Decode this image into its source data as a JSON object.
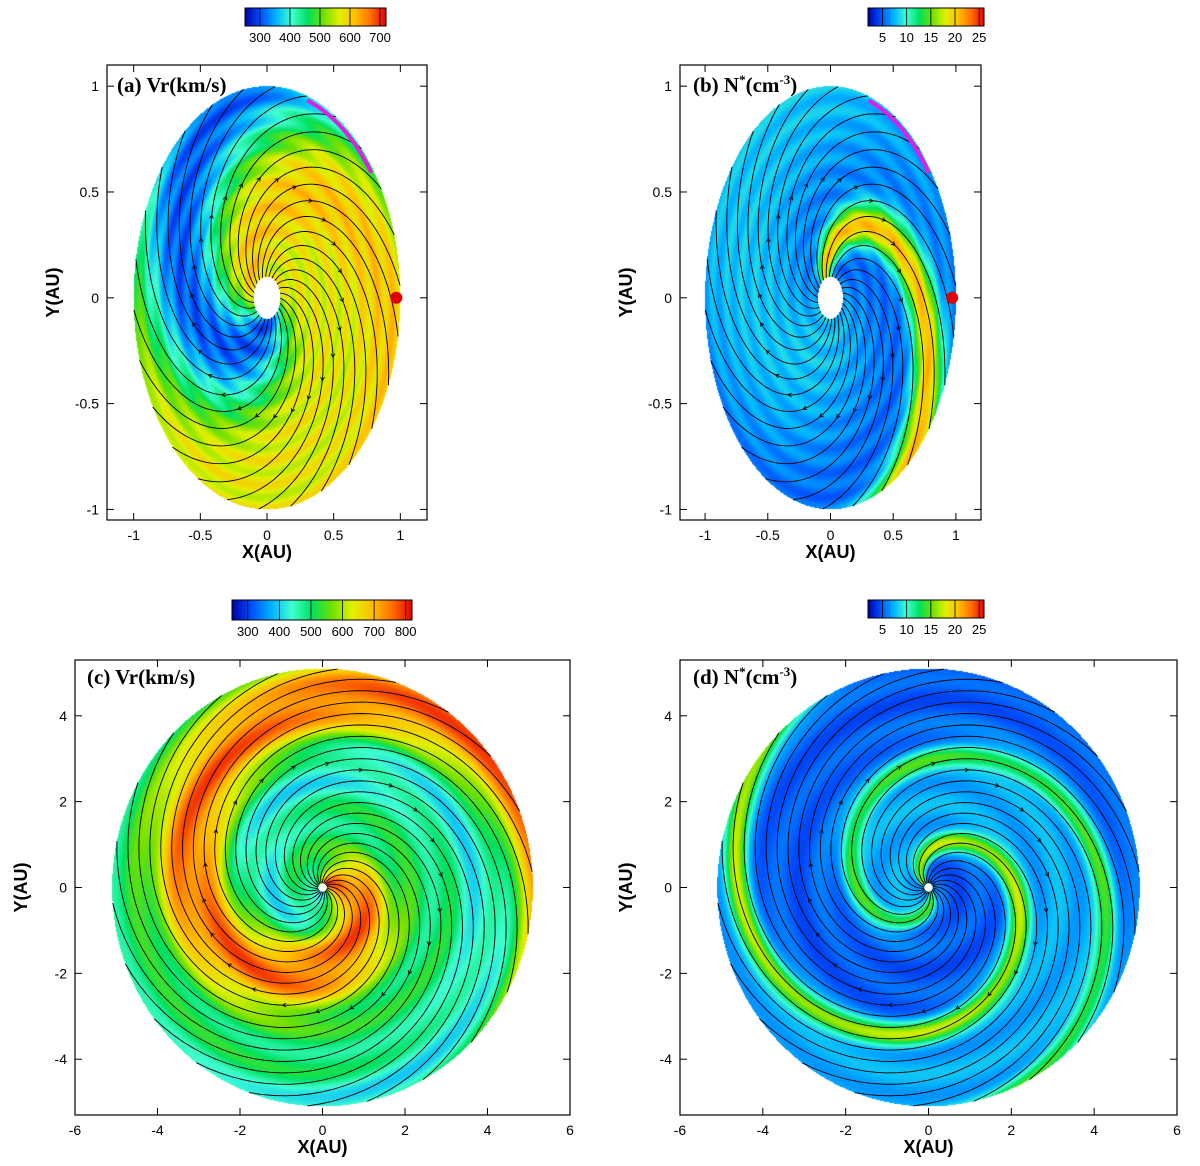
{
  "chart_data": [
    {
      "id": "a",
      "type": "heatmap",
      "title": "(a) Vr(km/s)",
      "quantity": "Vr",
      "xlabel": "X(AU)",
      "ylabel": "Y(AU)",
      "xlim": [
        -1.2,
        1.2
      ],
      "ylim": [
        -1.05,
        1.1
      ],
      "xticks": [
        -1,
        -0.5,
        0,
        0.5,
        1
      ],
      "yticks": [
        -1,
        -0.5,
        0,
        0.5,
        1
      ],
      "xtick_labels": [
        "-1",
        "-0.5",
        "0",
        "0.5",
        "1"
      ],
      "ytick_labels": [
        "-1",
        "-0.5",
        "0",
        "0.5",
        "1"
      ],
      "domain_radius": 1.0,
      "inner_radius": 0.1,
      "colorbar": {
        "min": 250,
        "max": 720,
        "ticks": [
          300,
          400,
          500,
          600,
          700
        ],
        "tick_labels": [
          "300",
          "400",
          "500",
          "600",
          "700"
        ]
      },
      "markers": [
        {
          "name": "Earth",
          "shape": "circle",
          "color": "#e00000",
          "x": 0.97,
          "y": 0.0
        }
      ],
      "highlight_arc": {
        "color": "#e020e0",
        "r": 0.98,
        "angle_start_deg": 37,
        "angle_end_deg": 72
      },
      "grid": false
    },
    {
      "id": "b",
      "type": "heatmap",
      "title": "(b) N*(cm-3)",
      "title_parts": {
        "prefix": "(b) N",
        "sup1": "*",
        "mid": "(cm",
        "sup2": "-3",
        "suffix": ")"
      },
      "quantity": "N*",
      "xlabel": "X(AU)",
      "ylabel": "Y(AU)",
      "xlim": [
        -1.2,
        1.2
      ],
      "ylim": [
        -1.05,
        1.1
      ],
      "xticks": [
        -1,
        -0.5,
        0,
        0.5,
        1
      ],
      "yticks": [
        -1,
        -0.5,
        0,
        0.5,
        1
      ],
      "xtick_labels": [
        "-1",
        "-0.5",
        "0",
        "0.5",
        "1"
      ],
      "ytick_labels": [
        "-1",
        "-0.5",
        "0",
        "0.5",
        "1"
      ],
      "domain_radius": 1.0,
      "inner_radius": 0.1,
      "colorbar": {
        "min": 2,
        "max": 26,
        "ticks": [
          5,
          10,
          15,
          20,
          25
        ],
        "tick_labels": [
          "5",
          "10",
          "15",
          "20",
          "25"
        ]
      },
      "markers": [
        {
          "name": "Earth",
          "shape": "circle",
          "color": "#e00000",
          "x": 0.97,
          "y": 0.0
        }
      ],
      "highlight_arc": {
        "color": "#e020e0",
        "r": 0.98,
        "angle_start_deg": 37,
        "angle_end_deg": 72
      },
      "grid": false
    },
    {
      "id": "c",
      "type": "heatmap",
      "title": "(c) Vr(km/s)",
      "quantity": "Vr",
      "xlabel": "X(AU)",
      "ylabel": "Y(AU)",
      "xlim": [
        -6,
        6
      ],
      "ylim": [
        -5.3,
        5.3
      ],
      "xticks": [
        -6,
        -4,
        -2,
        0,
        2,
        4,
        6
      ],
      "yticks": [
        -4,
        -2,
        0,
        2,
        4
      ],
      "xtick_labels": [
        "-6",
        "-4",
        "-2",
        "0",
        "2",
        "4",
        "6"
      ],
      "ytick_labels": [
        "-4",
        "-2",
        "0",
        "2",
        "4"
      ],
      "domain_radius": 5.1,
      "inner_radius": 0.1,
      "colorbar": {
        "min": 250,
        "max": 820,
        "ticks": [
          300,
          400,
          500,
          600,
          700,
          800
        ],
        "tick_labels": [
          "300",
          "400",
          "500",
          "600",
          "700",
          "800"
        ]
      },
      "markers": [],
      "grid": false
    },
    {
      "id": "d",
      "type": "heatmap",
      "title": "(d) N*(cm-3)",
      "title_parts": {
        "prefix": "(d) N",
        "sup1": "*",
        "mid": "(cm",
        "sup2": "-3",
        "suffix": ")"
      },
      "quantity": "N*",
      "xlabel": "X(AU)",
      "ylabel": "Y(AU)",
      "xlim": [
        -6,
        6
      ],
      "ylim": [
        -5.3,
        5.3
      ],
      "xticks": [
        -6,
        -4,
        -2,
        0,
        2,
        4,
        6
      ],
      "yticks": [
        -4,
        -2,
        0,
        2,
        4
      ],
      "xtick_labels": [
        "-6",
        "-4",
        "-2",
        "0",
        "2",
        "4",
        "6"
      ],
      "ytick_labels": [
        "-4",
        "-2",
        "0",
        "2",
        "4"
      ],
      "domain_radius": 5.1,
      "inner_radius": 0.1,
      "colorbar": {
        "min": 2,
        "max": 26,
        "ticks": [
          5,
          10,
          15,
          20,
          25
        ],
        "tick_labels": [
          "5",
          "10",
          "15",
          "20",
          "25"
        ]
      },
      "markers": [],
      "grid": false
    }
  ],
  "colormap": [
    "#0000a8",
    "#0050ff",
    "#00b4ff",
    "#40ffd0",
    "#00e060",
    "#70e000",
    "#e0f000",
    "#ffc000",
    "#ff7000",
    "#e80000"
  ],
  "streamline_color": "#000000",
  "frame_color": "#000000"
}
